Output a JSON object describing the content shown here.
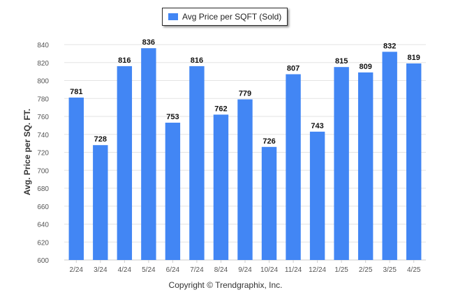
{
  "legend": {
    "label": "Avg Price per SQFT (Sold)"
  },
  "footer": {
    "text": "Copyright © Trendgraphix, Inc."
  },
  "colors": {
    "bar": "#4286f4",
    "grid": "#e3e3e3",
    "axis_text": "#555555",
    "label_text": "#111111"
  },
  "chart_data": {
    "type": "bar",
    "title": "",
    "xlabel": "",
    "ylabel": "Avg. Price per SQ. FT.",
    "ylim": [
      600,
      840
    ],
    "yticks": [
      600,
      620,
      640,
      660,
      680,
      700,
      720,
      740,
      760,
      780,
      800,
      820,
      840
    ],
    "grid": true,
    "legend_position": "top-center",
    "categories": [
      "2/24",
      "3/24",
      "4/24",
      "5/24",
      "6/24",
      "7/24",
      "8/24",
      "9/24",
      "10/24",
      "11/24",
      "12/24",
      "1/25",
      "2/25",
      "3/25",
      "4/25"
    ],
    "series": [
      {
        "name": "Avg Price per SQFT (Sold)",
        "values": [
          781,
          728,
          816,
          836,
          753,
          816,
          762,
          779,
          726,
          807,
          743,
          815,
          809,
          832,
          819
        ]
      }
    ]
  }
}
